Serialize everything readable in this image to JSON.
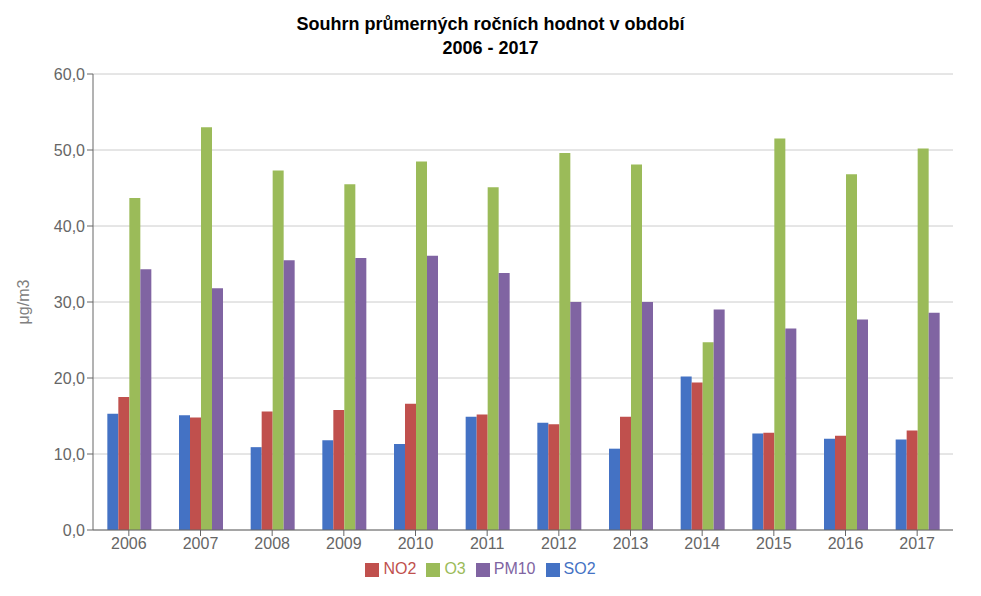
{
  "chart_data": {
    "type": "bar",
    "title": "Souhrn průmerných ročních hodnot v období\n2006 - 2017",
    "ylabel": "μg/m3",
    "categories": [
      "2006",
      "2007",
      "2008",
      "2009",
      "2010",
      "2011",
      "2012",
      "2013",
      "2014",
      "2015",
      "2016",
      "2017"
    ],
    "series": [
      {
        "name": "SO2",
        "color": "#4472C4",
        "values": [
          15.3,
          15.1,
          10.9,
          11.8,
          11.3,
          14.9,
          14.1,
          10.7,
          20.2,
          12.7,
          12.0,
          11.9
        ]
      },
      {
        "name": "NO2",
        "color": "#C0504D",
        "values": [
          17.5,
          14.8,
          15.6,
          15.8,
          16.6,
          15.2,
          13.9,
          14.9,
          19.4,
          12.8,
          12.4,
          13.1
        ]
      },
      {
        "name": "O3",
        "color": "#9BBB59",
        "values": [
          43.7,
          53.0,
          47.3,
          45.5,
          48.5,
          45.1,
          49.6,
          48.1,
          24.7,
          51.5,
          46.8,
          50.2
        ]
      },
      {
        "name": "PM10",
        "color": "#8064A2",
        "values": [
          34.3,
          31.8,
          35.5,
          35.8,
          36.1,
          33.8,
          30.0,
          30.0,
          29.0,
          26.5,
          27.7,
          28.6
        ]
      }
    ],
    "ylim": [
      0,
      60
    ],
    "yticks": [
      {
        "value": 0,
        "label": "0,0"
      },
      {
        "value": 10,
        "label": "10,0"
      },
      {
        "value": 20,
        "label": "20,0"
      },
      {
        "value": 30,
        "label": "30,0"
      },
      {
        "value": 40,
        "label": "40,0"
      },
      {
        "value": 50,
        "label": "50,0"
      },
      {
        "value": 60,
        "label": "60,0"
      }
    ],
    "grid": true,
    "legend": "bottom"
  }
}
